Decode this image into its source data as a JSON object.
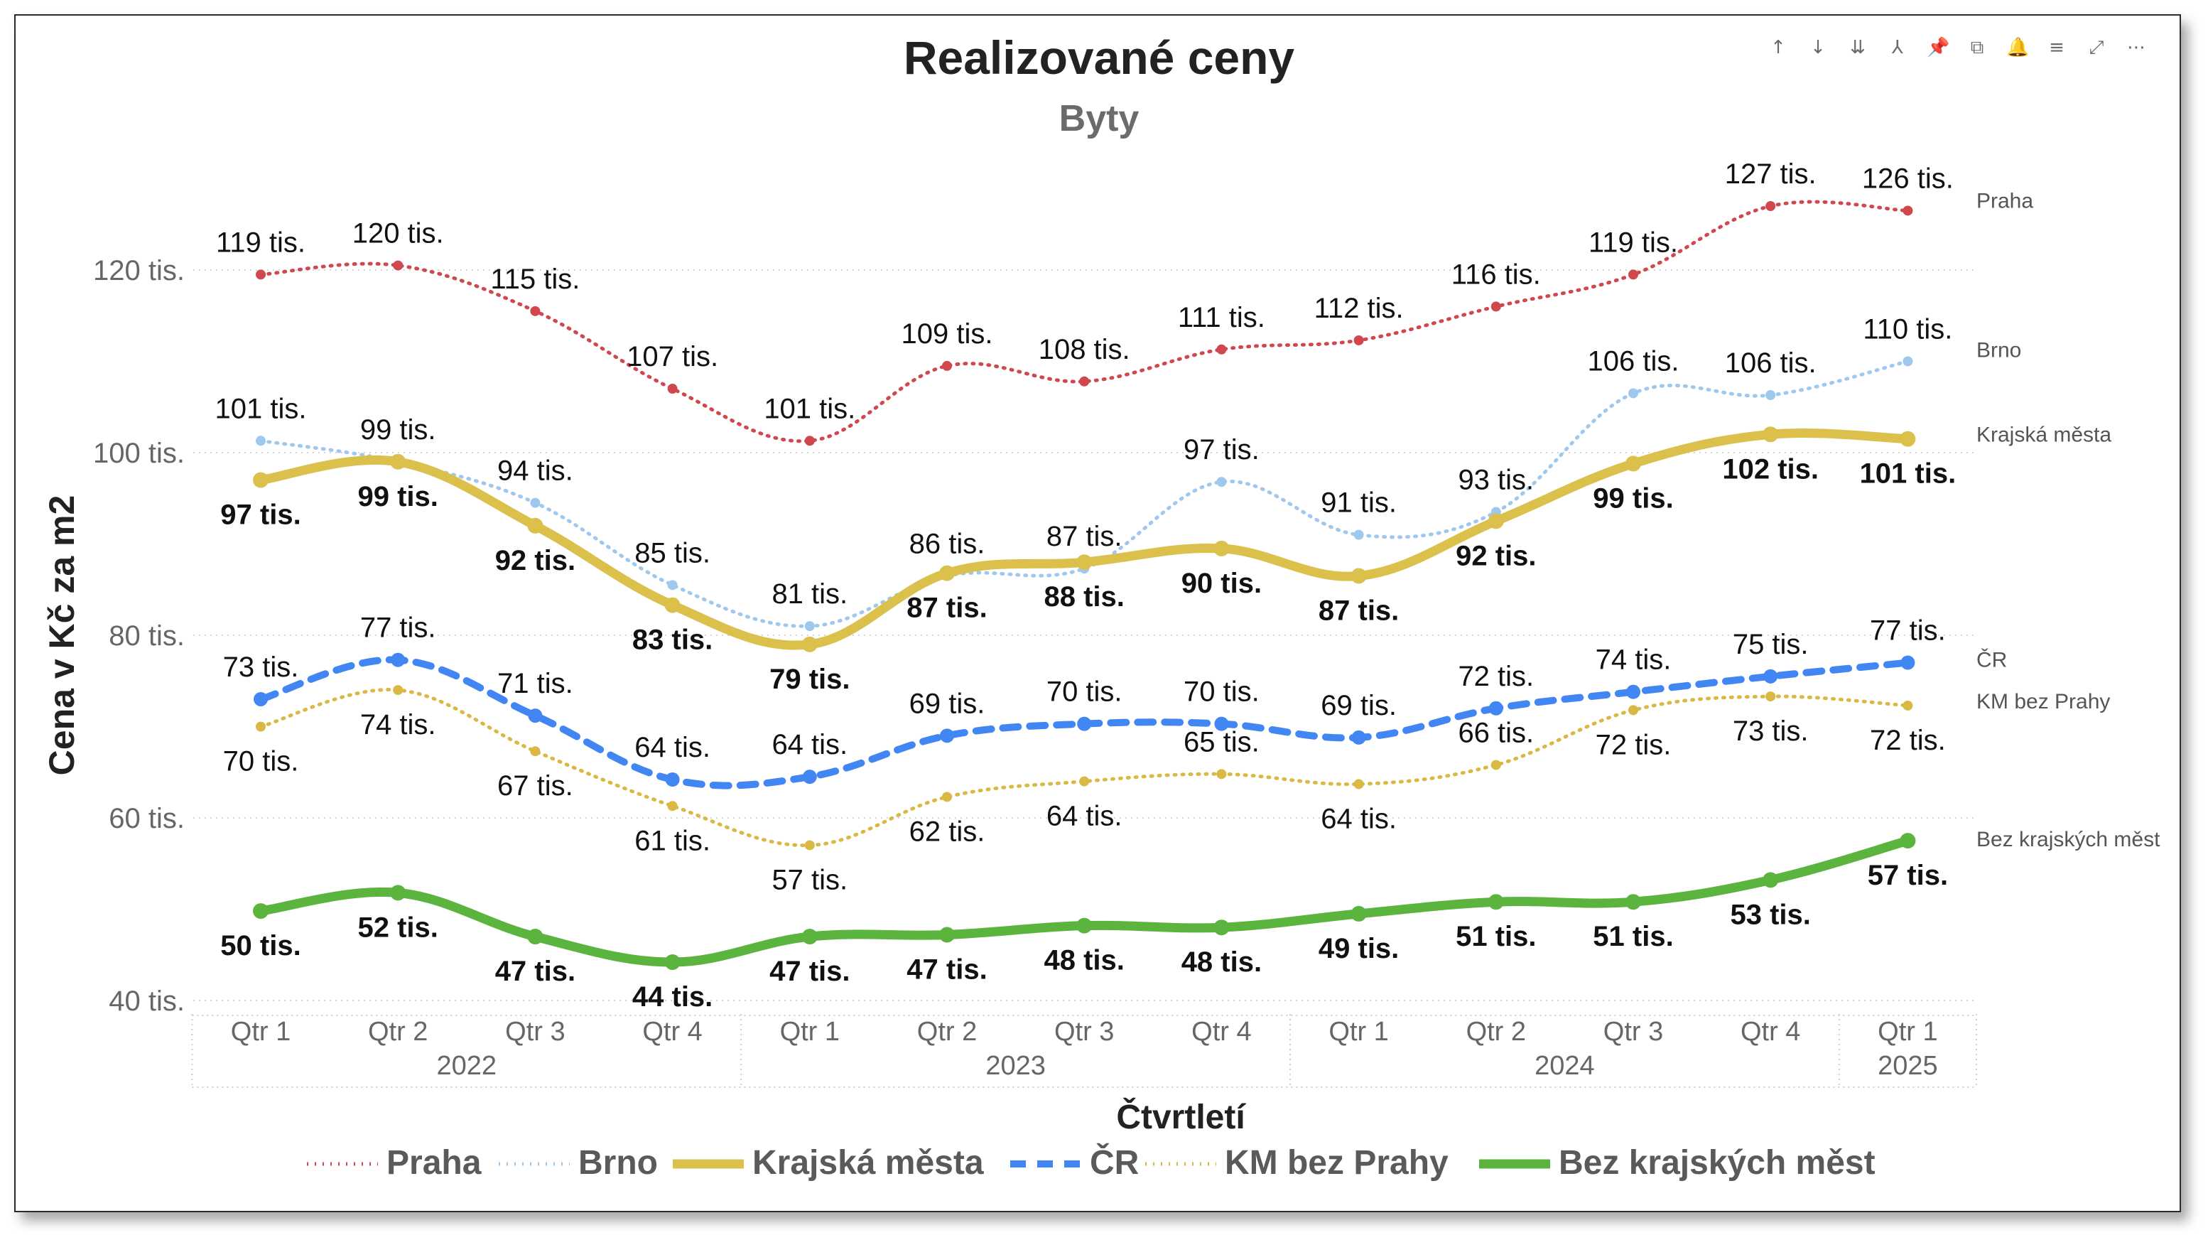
{
  "toolbar": {
    "icons": [
      "arrow-up-icon",
      "arrow-down-icon",
      "double-arrow-down-icon",
      "expand-hierarchy-icon",
      "pin-icon",
      "copy-icon",
      "bell-icon",
      "filter-icon",
      "focus-mode-icon",
      "more-options-icon"
    ],
    "glyphs": [
      "↑",
      "↓",
      "⇊",
      "⅄",
      "📌",
      "⧉",
      "🔔",
      "≡",
      "⤢",
      "⋯"
    ]
  },
  "chart_data": {
    "type": "line",
    "title": "Realizované ceny",
    "subtitle": "Byty",
    "xlabel": "Čtvrtletí",
    "ylabel": "Cena v Kč za m2",
    "ylim": [
      40,
      130
    ],
    "yticks": [
      40,
      60,
      80,
      100,
      120
    ],
    "ytick_labels": [
      "40 tis.",
      "60 tis.",
      "80 tis.",
      "100 tis.",
      "120 tis."
    ],
    "categories": [
      "Qtr 1",
      "Qtr 2",
      "Qtr 3",
      "Qtr 4",
      "Qtr 1",
      "Qtr 2",
      "Qtr 3",
      "Qtr 4",
      "Qtr 1",
      "Qtr 2",
      "Qtr 3",
      "Qtr 4",
      "Qtr 1"
    ],
    "years": [
      {
        "label": "2022",
        "start": 0,
        "end": 3
      },
      {
        "label": "2023",
        "start": 4,
        "end": 7
      },
      {
        "label": "2024",
        "start": 8,
        "end": 11
      },
      {
        "label": "2025",
        "start": 12,
        "end": 12
      }
    ],
    "grid": "horizontal",
    "legend": "bottom",
    "series": [
      {
        "name": "Praha",
        "color": "#d0474e",
        "style": "dotted-thin",
        "values": [
          119.5,
          120.5,
          115.5,
          107,
          101.3,
          109.5,
          107.8,
          111.3,
          112.3,
          116,
          119.5,
          127,
          126.5
        ],
        "labels": [
          "119 tis.",
          "120 tis.",
          "115 tis.",
          "107 tis.",
          "101 tis.",
          "109 tis.",
          "108 tis.",
          "111 tis.",
          "112 tis.",
          "116 tis.",
          "119 tis.",
          "127 tis.",
          "126 tis."
        ],
        "label_pos": [
          "above",
          "above",
          "above",
          "above",
          "above",
          "above",
          "above",
          "above",
          "above",
          "above",
          "above",
          "above",
          "above"
        ],
        "end_label": "Praha"
      },
      {
        "name": "Brno",
        "color": "#9fc8ee",
        "style": "dotted-thin",
        "values": [
          101.3,
          99,
          94.5,
          85.5,
          81,
          86.5,
          87.3,
          96.8,
          91,
          93.5,
          106.5,
          106.3,
          110
        ],
        "labels": [
          "101 tis.",
          "99 tis.",
          "94 tis.",
          "85 tis.",
          "81 tis.",
          "86 tis.",
          "87 tis.",
          "97 tis.",
          "91 tis.",
          "93 tis.",
          "106 tis.",
          "106 tis.",
          "110 tis."
        ],
        "label_pos": [
          "above",
          "above",
          "above",
          "above",
          "above",
          "above",
          "above",
          "above",
          "above",
          "above",
          "above",
          "above",
          "above"
        ],
        "end_label": "Brno"
      },
      {
        "name": "Krajská města",
        "color": "#dcc04c",
        "style": "solid-thick",
        "values": [
          97,
          99,
          92,
          83.3,
          79,
          86.8,
          88,
          89.5,
          86.5,
          92.5,
          98.8,
          102,
          101.5
        ],
        "labels": [
          "97 tis.",
          "99 tis.",
          "92 tis.",
          "83 tis.",
          "79 tis.",
          "87 tis.",
          "88 tis.",
          "90 tis.",
          "87 tis.",
          "92 tis.",
          "99 tis.",
          "102 tis.",
          "101 tis."
        ],
        "label_pos": [
          "below",
          "below",
          "below",
          "below",
          "below",
          "below",
          "below",
          "below",
          "below",
          "below",
          "below",
          "below",
          "below"
        ],
        "end_label": "Krajská města"
      },
      {
        "name": "ČR",
        "color": "#4286f4",
        "style": "dashed",
        "values": [
          73,
          77.3,
          71.2,
          64.2,
          64.5,
          69,
          70.3,
          70.3,
          68.8,
          72,
          73.8,
          75.5,
          77
        ],
        "labels": [
          "73 tis.",
          "77 tis.",
          "71 tis.",
          "64 tis.",
          "64 tis.",
          "69 tis.",
          "70 tis.",
          "70 tis.",
          "69 tis.",
          "72 tis.",
          "74 tis.",
          "75 tis.",
          "77 tis."
        ],
        "label_pos": [
          "above",
          "above",
          "above",
          "above",
          "above",
          "above",
          "above",
          "above",
          "above",
          "above",
          "above",
          "above",
          "above"
        ],
        "end_label": "ČR"
      },
      {
        "name": "KM bez Prahy",
        "color": "#d9b843",
        "style": "dotted-medium",
        "values": [
          70,
          74,
          67.3,
          61.3,
          57,
          62.3,
          64,
          64.8,
          63.7,
          65.8,
          71.8,
          73.3,
          72.3
        ],
        "labels": [
          "70 tis.",
          "74 tis.",
          "67 tis.",
          "61 tis.",
          "57 tis.",
          "62 tis.",
          "64 tis.",
          "65 tis.",
          "64 tis.",
          "66 tis.",
          "72 tis.",
          "73 tis.",
          "72 tis."
        ],
        "label_pos": [
          "below",
          "below",
          "below",
          "below",
          "below",
          "below",
          "below",
          "above",
          "below",
          "above",
          "below",
          "below",
          "below"
        ],
        "end_label": "KM bez Prahy"
      },
      {
        "name": "Bez krajských měst",
        "color": "#5ab43d",
        "style": "solid-thick",
        "values": [
          49.8,
          51.8,
          47,
          44.2,
          47,
          47.2,
          48.2,
          48,
          49.5,
          50.8,
          50.8,
          53.2,
          57.5
        ],
        "labels": [
          "50 tis.",
          "52 tis.",
          "47 tis.",
          "44 tis.",
          "47 tis.",
          "47 tis.",
          "48 tis.",
          "48 tis.",
          "49 tis.",
          "51 tis.",
          "51 tis.",
          "53 tis.",
          "57 tis."
        ],
        "label_pos": [
          "below",
          "below",
          "below",
          "below",
          "below",
          "below",
          "below",
          "below",
          "below",
          "below",
          "below",
          "below",
          "below"
        ],
        "end_label": "Bez krajských měst"
      }
    ]
  }
}
